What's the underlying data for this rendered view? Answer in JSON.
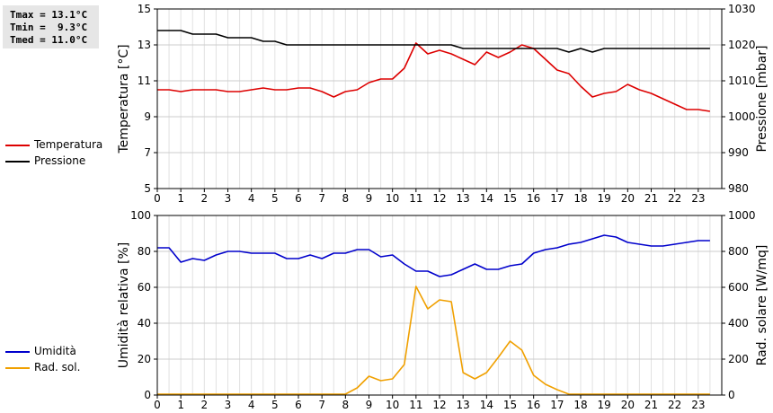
{
  "stats": {
    "tmax": "Tmax = 13.1°C",
    "tmin": "Tmin =  9.3°C",
    "tmed": "Tmed = 11.0°C"
  },
  "colors": {
    "temperatura": "#dd0000",
    "pressione": "#000000",
    "umidita": "#0000cc",
    "radsol": "#f0a000",
    "grid": "#cccccc"
  },
  "chart_data": [
    {
      "type": "line",
      "x_ticks": [
        "0",
        "1",
        "2",
        "3",
        "4",
        "5",
        "6",
        "7",
        "8",
        "9",
        "10",
        "11",
        "12",
        "13",
        "14",
        "15",
        "16",
        "17",
        "18",
        "19",
        "20",
        "21",
        "22",
        "23"
      ],
      "ylabel": "Temperatura [°C]",
      "ylabel_right": "Pressione [mbar]",
      "ylim": [
        5,
        15
      ],
      "ylim_right": [
        980,
        1030
      ],
      "y_ticks": [
        "5",
        "7",
        "9",
        "11",
        "13",
        "15"
      ],
      "y_ticks_right": [
        "980",
        "990",
        "1000",
        "1010",
        "1020",
        "1030"
      ],
      "x": [
        0,
        0.5,
        1,
        1.5,
        2,
        2.5,
        3,
        3.5,
        4,
        4.5,
        5,
        5.5,
        6,
        6.5,
        7,
        7.5,
        8,
        8.5,
        9,
        9.5,
        10,
        10.5,
        11,
        11.5,
        12,
        12.5,
        13,
        13.5,
        14,
        14.5,
        15,
        15.5,
        16,
        16.5,
        17,
        17.5,
        18,
        18.5,
        19,
        19.5,
        20,
        20.5,
        21,
        21.5,
        22,
        22.5,
        23,
        23.5
      ],
      "series": [
        {
          "name": "Temperatura",
          "axis": "left",
          "values": [
            10.5,
            10.5,
            10.4,
            10.5,
            10.5,
            10.5,
            10.4,
            10.4,
            10.5,
            10.6,
            10.5,
            10.5,
            10.6,
            10.6,
            10.4,
            10.1,
            10.4,
            10.5,
            10.9,
            11.1,
            11.1,
            11.7,
            13.1,
            12.5,
            12.7,
            12.5,
            12.2,
            11.9,
            12.6,
            12.3,
            12.6,
            13.0,
            12.8,
            12.2,
            11.6,
            11.4,
            10.7,
            10.1,
            10.3,
            10.4,
            10.8,
            10.5,
            10.3,
            10.0,
            9.7,
            9.4,
            9.4,
            9.3
          ]
        },
        {
          "name": "Pressione",
          "axis": "right",
          "values": [
            1024,
            1024,
            1024,
            1023,
            1023,
            1023,
            1022,
            1022,
            1022,
            1021,
            1021,
            1020,
            1020,
            1020,
            1020,
            1020,
            1020,
            1020,
            1020,
            1020,
            1020,
            1020,
            1020,
            1020,
            1020,
            1020,
            1019,
            1019,
            1019,
            1019,
            1019,
            1019,
            1019,
            1019,
            1019,
            1018,
            1019,
            1018,
            1019,
            1019,
            1019,
            1019,
            1019,
            1019,
            1019,
            1019,
            1019,
            1019
          ]
        }
      ],
      "grid": true
    },
    {
      "type": "line",
      "x_ticks": [
        "0",
        "1",
        "2",
        "3",
        "4",
        "5",
        "6",
        "7",
        "8",
        "9",
        "10",
        "11",
        "12",
        "13",
        "14",
        "15",
        "16",
        "17",
        "18",
        "19",
        "20",
        "21",
        "22",
        "23"
      ],
      "ylabel": "Umidità relativa [%]",
      "ylabel_right": "Rad. solare [W/mq]",
      "ylim": [
        0,
        100
      ],
      "ylim_right": [
        0,
        1000
      ],
      "y_ticks": [
        "0",
        "20",
        "40",
        "60",
        "80",
        "100"
      ],
      "y_ticks_right": [
        "0",
        "200",
        "400",
        "600",
        "800",
        "1000"
      ],
      "x": [
        0,
        0.5,
        1,
        1.5,
        2,
        2.5,
        3,
        3.5,
        4,
        4.5,
        5,
        5.5,
        6,
        6.5,
        7,
        7.5,
        8,
        8.5,
        9,
        9.5,
        10,
        10.5,
        11,
        11.5,
        12,
        12.5,
        13,
        13.5,
        14,
        14.5,
        15,
        15.5,
        16,
        16.5,
        17,
        17.5,
        18,
        18.5,
        19,
        19.5,
        20,
        20.5,
        21,
        21.5,
        22,
        22.5,
        23,
        23.5
      ],
      "series": [
        {
          "name": "Umidità",
          "axis": "left",
          "values": [
            82,
            82,
            74,
            76,
            75,
            78,
            80,
            80,
            79,
            79,
            79,
            76,
            76,
            78,
            76,
            79,
            79,
            81,
            81,
            77,
            78,
            73,
            69,
            69,
            66,
            67,
            70,
            73,
            70,
            70,
            72,
            73,
            79,
            81,
            82,
            84,
            85,
            87,
            89,
            88,
            85,
            84,
            83,
            83,
            84,
            85,
            86,
            86
          ]
        },
        {
          "name": "Rad. sol.",
          "axis": "right",
          "values": [
            5,
            5,
            5,
            5,
            5,
            5,
            5,
            5,
            5,
            5,
            5,
            5,
            5,
            5,
            5,
            5,
            5,
            40,
            105,
            80,
            90,
            170,
            605,
            480,
            530,
            520,
            125,
            90,
            125,
            210,
            300,
            250,
            110,
            60,
            30,
            5,
            5,
            5,
            5,
            5,
            5,
            5,
            5,
            5,
            5,
            5,
            5,
            5
          ]
        }
      ],
      "grid": true
    }
  ]
}
